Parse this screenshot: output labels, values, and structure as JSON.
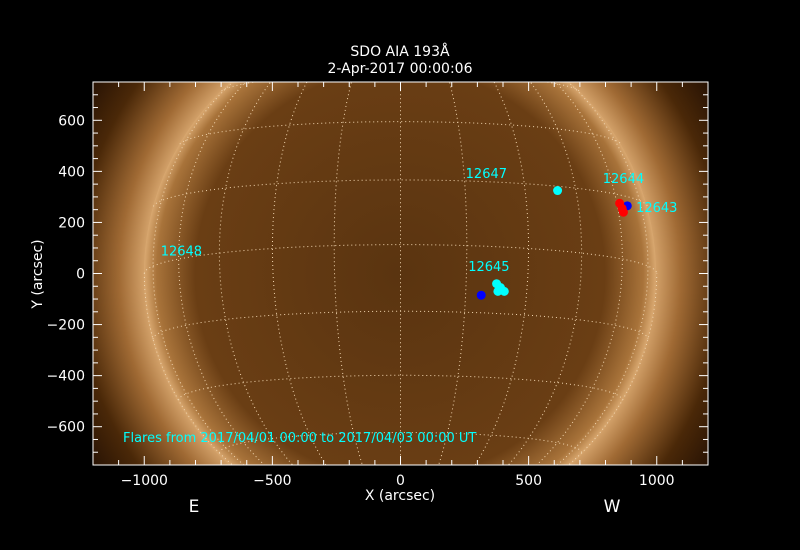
{
  "chart_data": {
    "type": "scatter",
    "title": "SDO AIA 193Å",
    "subtitle": "2-Apr-2017 00:00:06",
    "xlabel": "X (arcsec)",
    "ylabel": "Y (arcsec)",
    "xlim": [
      -1200,
      1200
    ],
    "ylim": [
      -750,
      750
    ],
    "x_ticks": [
      -1000,
      -500,
      0,
      500,
      1000
    ],
    "y_ticks": [
      -600,
      -400,
      -200,
      0,
      200,
      400,
      600
    ],
    "grid": true,
    "background_image": "solar disk, AIA 193 channel, copper colormap",
    "solar_radius_arcsec": 1000,
    "east_label": "E",
    "west_label": "W",
    "annotation": "Flares from 2017/04/01 00:00 to 2017/04/03 00:00 UT",
    "colors": {
      "cyan": "#00ffff",
      "blue": "#0000ff",
      "red": "#ff0000"
    },
    "active_regions": [
      {
        "label": "12647",
        "x": 335,
        "y": 375
      },
      {
        "label": "12644",
        "x": 870,
        "y": 355
      },
      {
        "label": "12643",
        "x": 1000,
        "y": 240
      },
      {
        "label": "12648",
        "x": 855,
        "y": 70,
        "x_sign": -1
      },
      {
        "label": "12645",
        "x": 345,
        "y": 10
      }
    ],
    "flares": [
      {
        "x": 613,
        "y": 325,
        "color": "#00ffff"
      },
      {
        "x": 375,
        "y": -40,
        "color": "#00ffff"
      },
      {
        "x": 390,
        "y": -55,
        "color": "#00ffff"
      },
      {
        "x": 380,
        "y": -70,
        "color": "#00ffff"
      },
      {
        "x": 405,
        "y": -70,
        "color": "#00ffff"
      },
      {
        "x": 315,
        "y": -85,
        "color": "#0000ff"
      },
      {
        "x": 885,
        "y": 265,
        "color": "#0000ff"
      },
      {
        "x": 855,
        "y": 275,
        "color": "#ff0000"
      },
      {
        "x": 865,
        "y": 255,
        "color": "#ff0000"
      },
      {
        "x": 870,
        "y": 240,
        "color": "#ff0000"
      }
    ]
  }
}
